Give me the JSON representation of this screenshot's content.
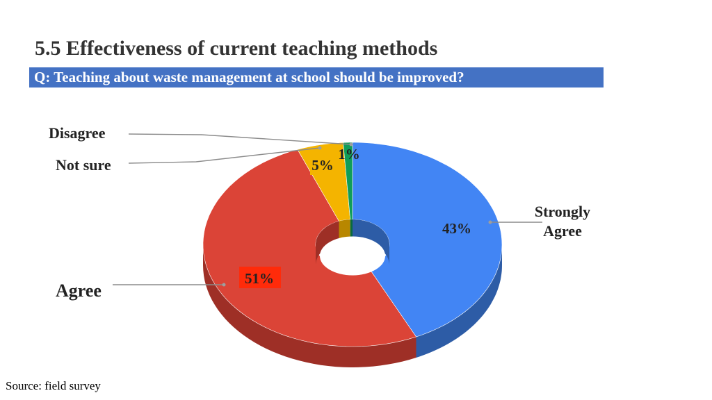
{
  "title": "5.5 Effectiveness of current teaching methods",
  "subtitle": "Q: Teaching about waste management at school should be improved?",
  "source": "Source: field survey",
  "chart_data": {
    "type": "pie",
    "style": "3d-donut",
    "categories": [
      "Strongly Agree",
      "Agree",
      "Not sure",
      "Disagree"
    ],
    "values": [
      43,
      51,
      5,
      1
    ],
    "value_labels": [
      "43%",
      "51%",
      "5%",
      "1%"
    ],
    "colors": [
      "#4285f4",
      "#db4437",
      "#f4b400",
      "#0f9d58"
    ],
    "side_colors": [
      "#2d5ca6",
      "#9e2f26",
      "#b88700",
      "#0a6b3c"
    ]
  }
}
